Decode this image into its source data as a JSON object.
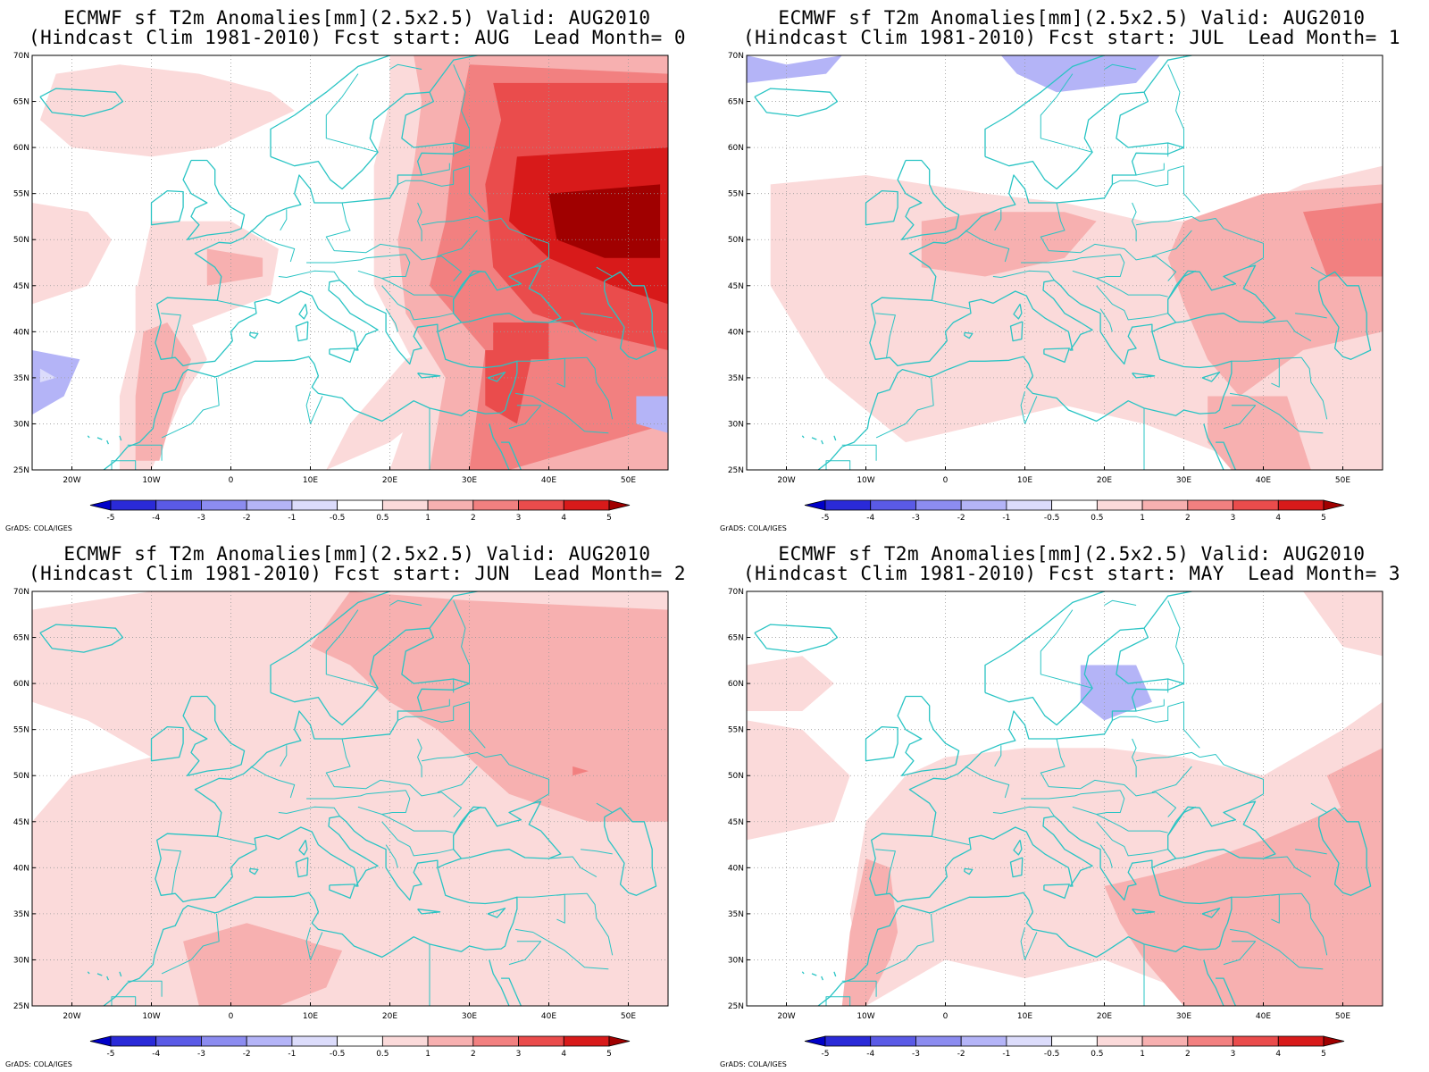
{
  "credit": "GrADS: COLA/IGES",
  "lat_labels": [
    "70N",
    "65N",
    "60N",
    "55N",
    "50N",
    "45N",
    "40N",
    "35N",
    "30N",
    "25N"
  ],
  "lon_labels": [
    "20W",
    "10W",
    "0",
    "10E",
    "20E",
    "30E",
    "40E",
    "50E"
  ],
  "colorbar": {
    "labels": [
      "-5",
      "-4",
      "-3",
      "-2",
      "-1",
      "-0.5",
      "0.5",
      "1",
      "2",
      "3",
      "4",
      "5"
    ],
    "colors": [
      "#0000c8",
      "#2a2ad8",
      "#5a5ae6",
      "#8c8cf0",
      "#b4b4f7",
      "#dcdcfb",
      "#ffffff",
      "#fbdada",
      "#f7b0b0",
      "#f28080",
      "#ea4c4c",
      "#d81a1a",
      "#a00000"
    ]
  },
  "coast_color": "#29c4c4",
  "panels": [
    {
      "title1": "ECMWF sf T2m Anomalies[mm](2.5x2.5) Valid: AUG2010",
      "title2": "(Hindcast Clim 1981-2010) Fcst start: AUG  Lead Month= 0"
    },
    {
      "title1": "ECMWF sf T2m Anomalies[mm](2.5x2.5) Valid: AUG2010",
      "title2": "(Hindcast Clim 1981-2010) Fcst start: JUL  Lead Month= 1"
    },
    {
      "title1": "ECMWF sf T2m Anomalies[mm](2.5x2.5) Valid: AUG2010",
      "title2": "(Hindcast Clim 1981-2010) Fcst start: JUN  Lead Month= 2"
    },
    {
      "title1": "ECMWF sf T2m Anomalies[mm](2.5x2.5) Valid: AUG2010",
      "title2": "(Hindcast Clim 1981-2010) Fcst start: MAY  Lead Month= 3"
    }
  ]
}
